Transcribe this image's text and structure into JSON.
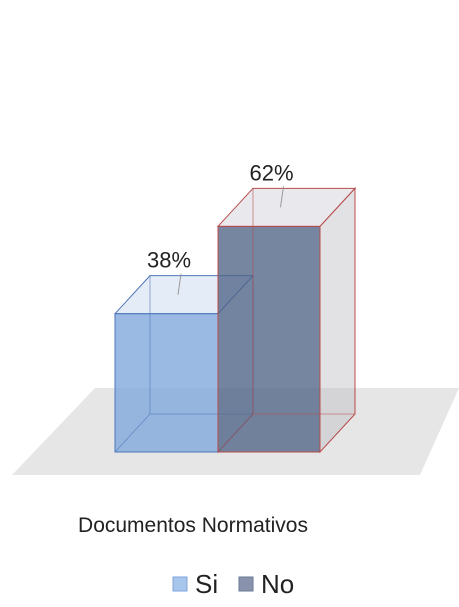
{
  "chart_data": {
    "type": "bar",
    "categories": [
      "Documentos Normativos"
    ],
    "series": [
      {
        "name": "Si",
        "values": [
          38
        ],
        "data_label": "38%",
        "color": "#7ea6dc"
      },
      {
        "name": "No",
        "values": [
          62
        ],
        "data_label": "62%",
        "color": "#5e7090"
      }
    ],
    "xlabel": "Documentos Normativos",
    "legend": {
      "placement": "bottom-center",
      "entries": [
        "Si",
        "No"
      ]
    },
    "ylim": [
      0,
      100
    ],
    "grid": false,
    "floor_color": "#e6e6e6"
  }
}
